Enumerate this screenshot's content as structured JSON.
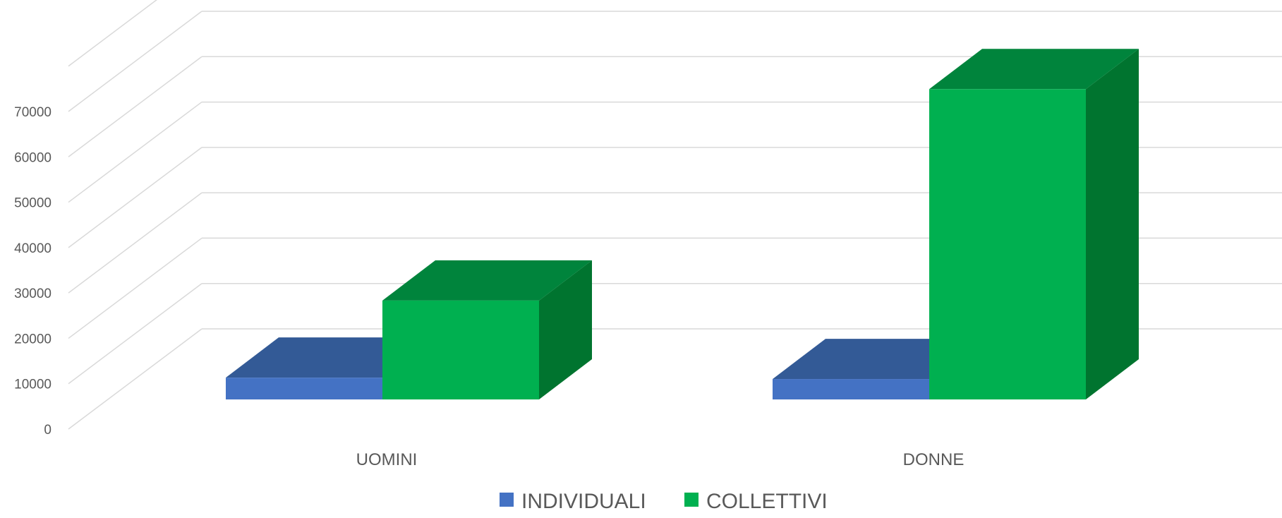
{
  "chart_data": {
    "type": "bar",
    "style": "3d-clustered-column",
    "categories": [
      "UOMINI",
      "DONNE"
    ],
    "series": [
      {
        "name": "INDIVIDUALI",
        "values": [
          4800,
          4500
        ],
        "color": "#4472C4",
        "top_color": "#335A96"
      },
      {
        "name": "COLLETTIVI",
        "values": [
          21800,
          68400
        ],
        "color": "#00B050",
        "top_color": "#00843C",
        "side_color": "#00742F"
      }
    ],
    "yticks": [
      0,
      10000,
      20000,
      30000,
      40000,
      50000,
      60000,
      70000
    ],
    "ylim": [
      0,
      85000
    ],
    "grid": true,
    "legend": "bottom"
  }
}
